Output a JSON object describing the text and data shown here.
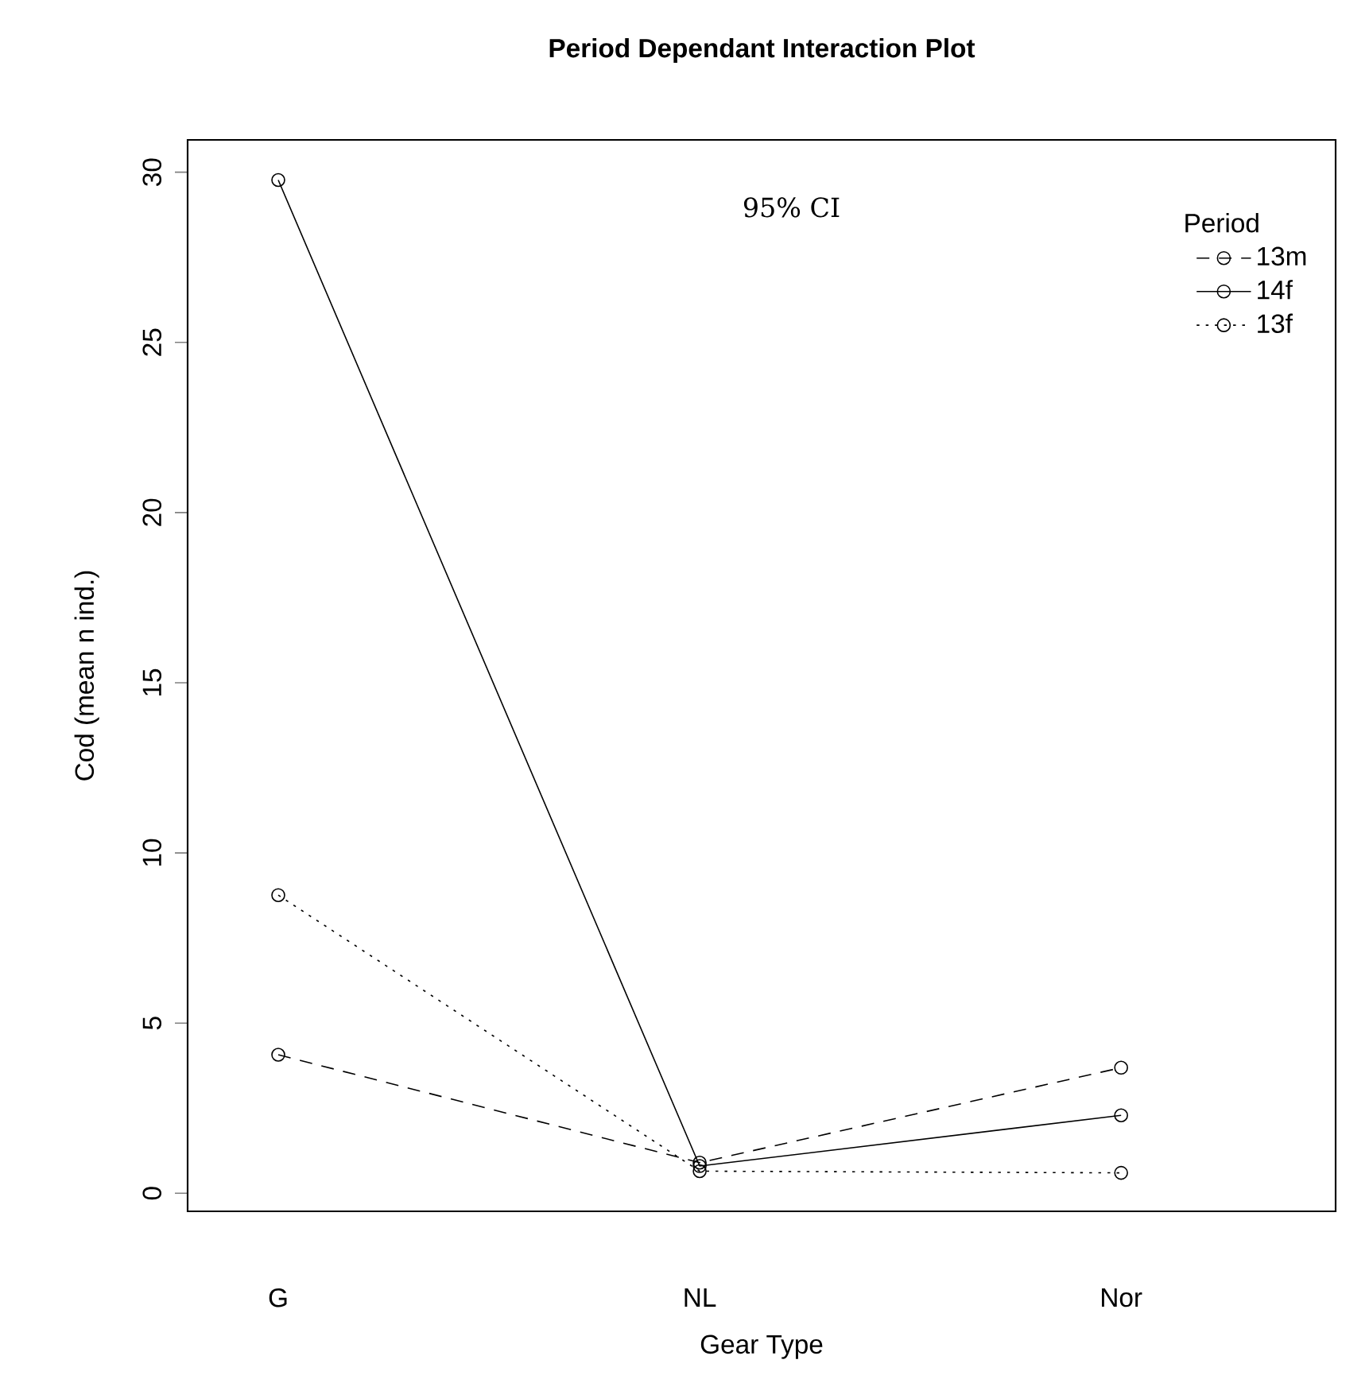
{
  "chart_data": {
    "type": "line",
    "title": "Period Dependant Interaction Plot",
    "xlabel": "Gear Type",
    "ylabel": "Cod (mean n ind.)",
    "legend_title": "Period",
    "annotations": [
      "95% CI"
    ],
    "categories": [
      "G",
      "NL",
      "Nor"
    ],
    "series": [
      {
        "name": "13m",
        "color": "#000000",
        "line_style": "dashed",
        "values": [
          4.07,
          0.9,
          3.69
        ]
      },
      {
        "name": "14f",
        "color": "#000000",
        "line_style": "solid",
        "values": [
          29.77,
          0.8,
          2.29
        ]
      },
      {
        "name": "13f",
        "color": "#000000",
        "line_style": "dotted",
        "values": [
          8.76,
          0.65,
          0.6
        ]
      }
    ],
    "marker": "circle",
    "ylim": [
      -0.53,
      30.95
    ],
    "yticks": [
      0,
      5,
      10,
      15,
      20,
      25,
      30
    ],
    "legend": "top right"
  }
}
